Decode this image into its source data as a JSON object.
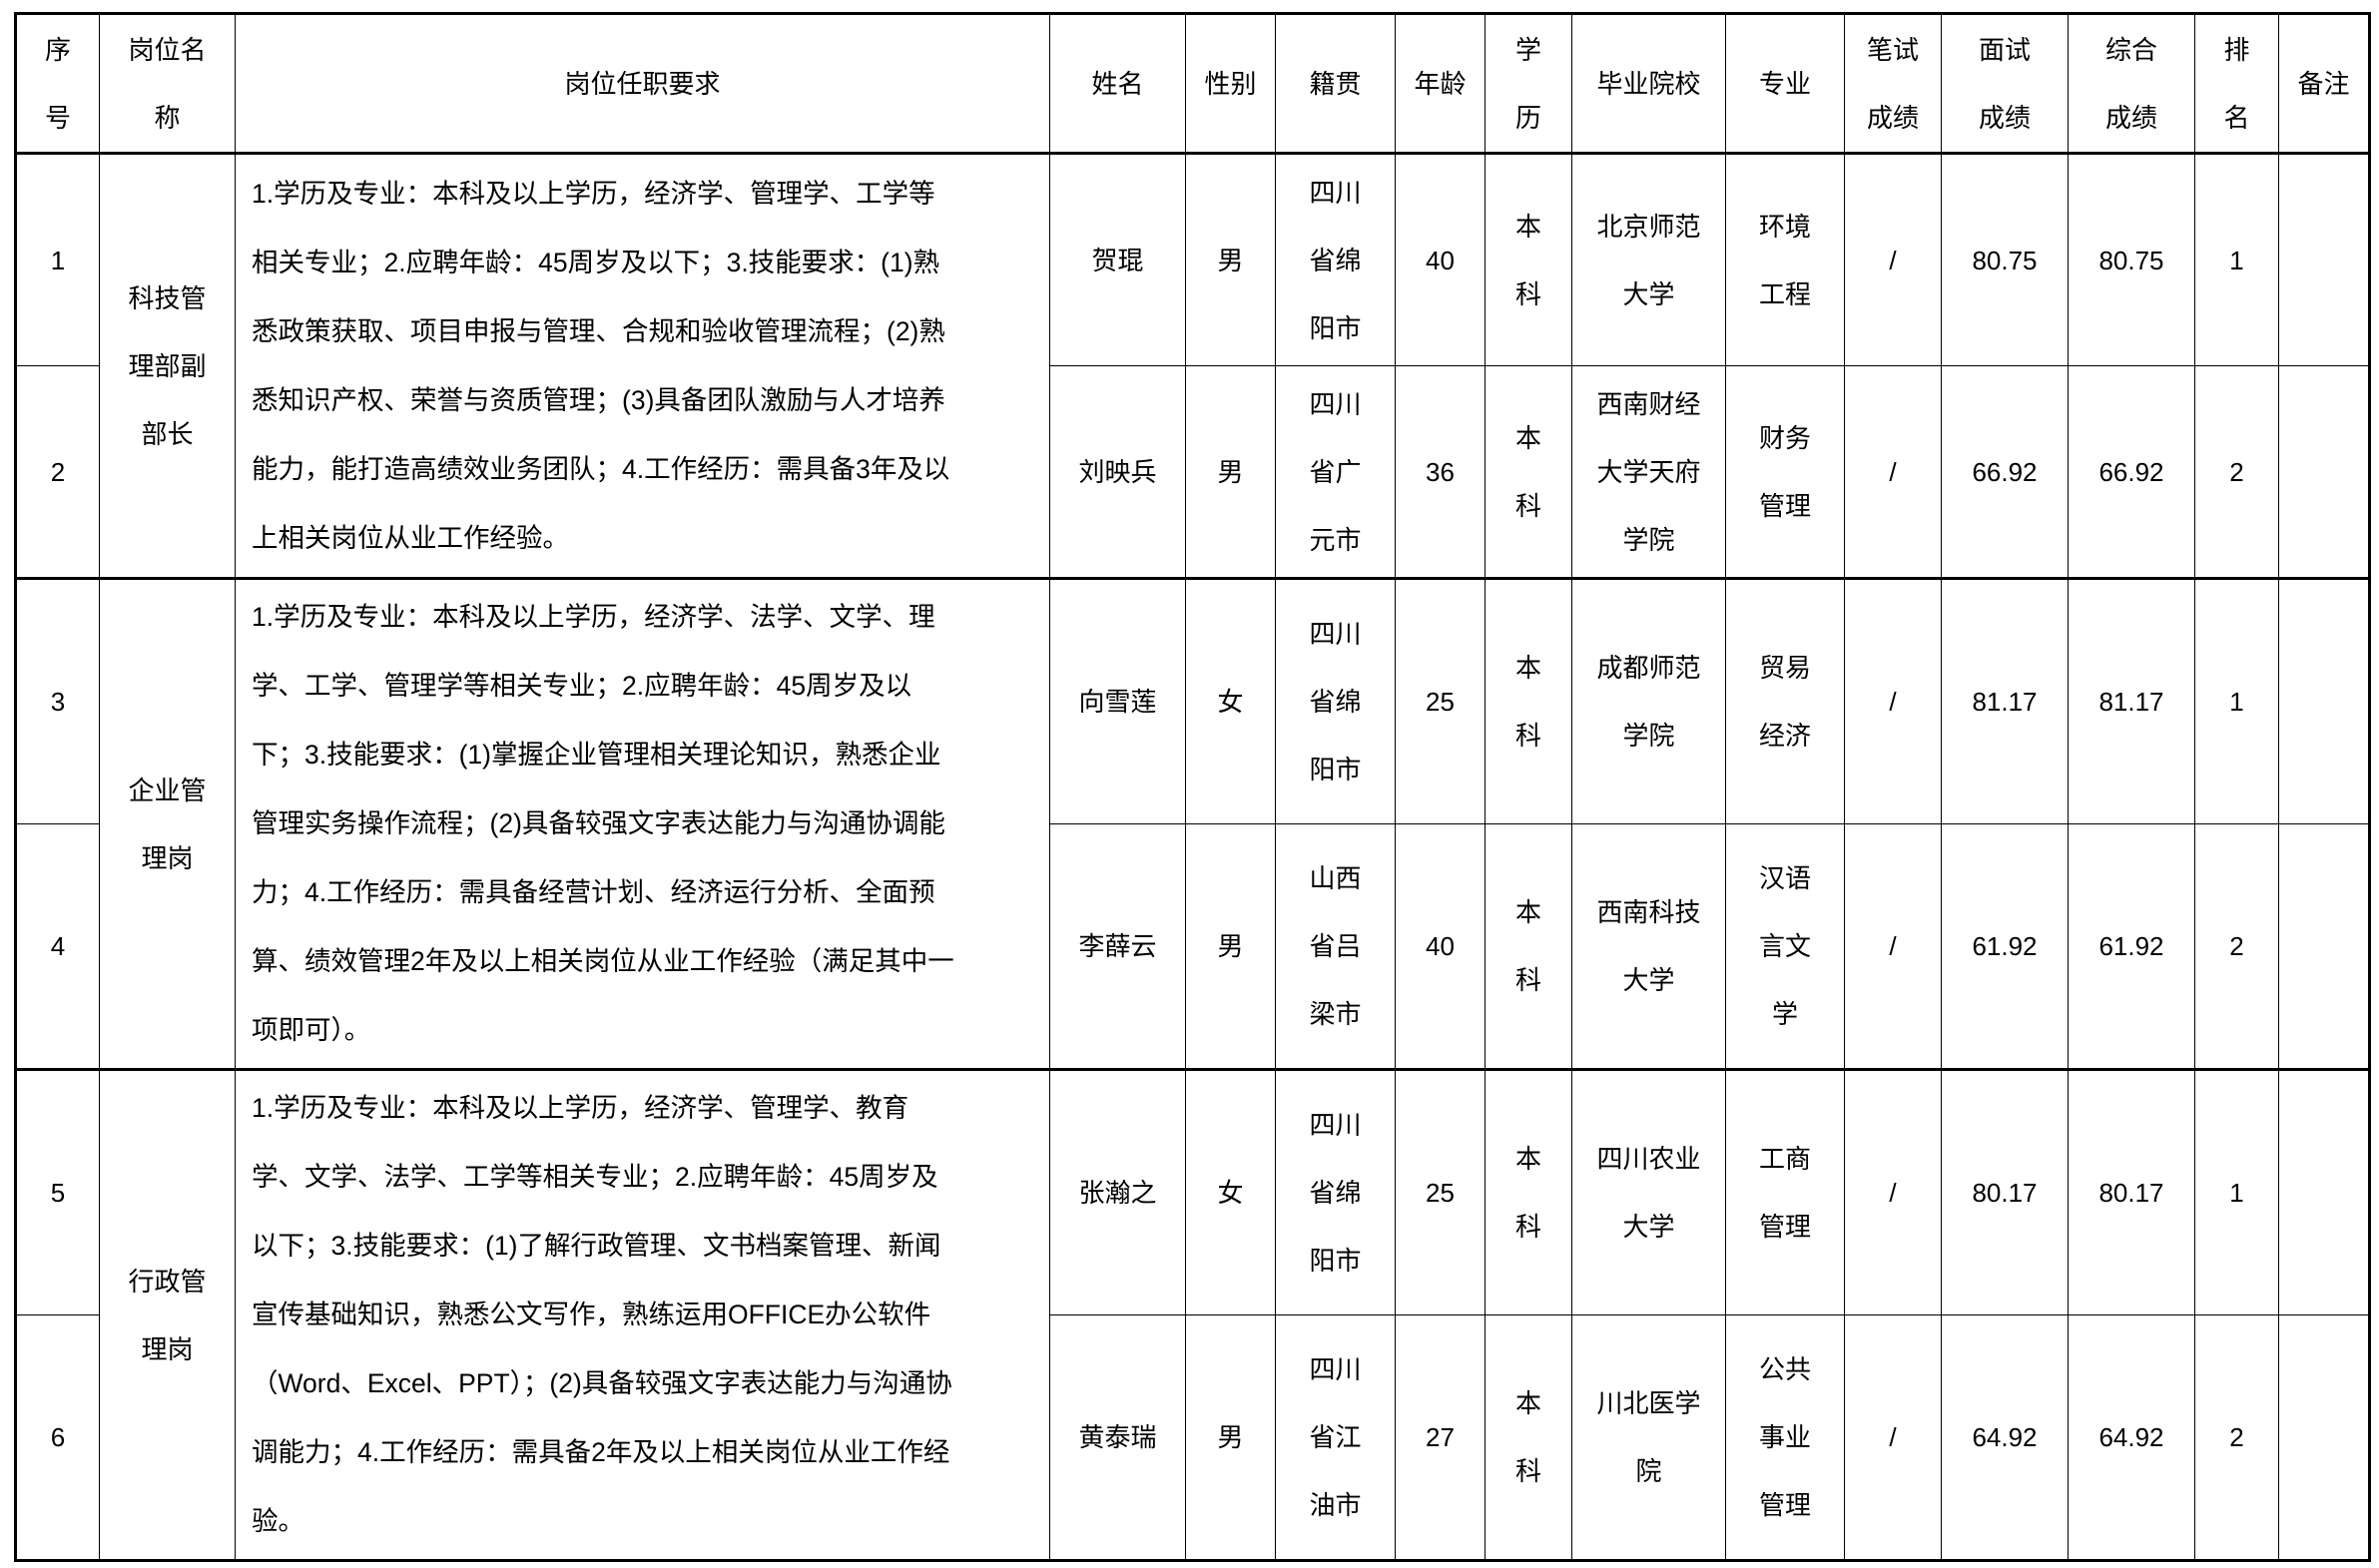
{
  "headers": [
    "序\n号",
    "岗位名\n称",
    "岗位任职要求",
    "姓名",
    "性别",
    "籍贯",
    "年龄",
    "学\n历",
    "毕业院校",
    "专业",
    "笔试\n成绩",
    "面试\n成绩",
    "综合\n成绩",
    "排\n名",
    "备注"
  ],
  "groups": [
    {
      "position": "科技管\n理部副\n部长",
      "requirements": "1.学历及专业：本科及以上学历，经济学、管理学、工学等\n相关专业；2.应聘年龄：45周岁及以下；3.技能要求：(1)熟\n悉政策获取、项目申报与管理、合规和验收管理流程；(2)熟\n悉知识产权、荣誉与资质管理；(3)具备团队激励与人才培养\n能力，能打造高绩效业务团队；4.工作经历：需具备3年及以\n上相关岗位从业工作经验。",
      "rows": [
        {
          "no": "1",
          "name": "贺琨",
          "gender": "男",
          "origin": "四川\n省绵\n阳市",
          "age": "40",
          "edu": "本\n科",
          "school": "北京师范\n大学",
          "major": "环境\n工程",
          "written": "/",
          "interview": "80.75",
          "total": "80.75",
          "rank": "1",
          "note": ""
        },
        {
          "no": "2",
          "name": "刘映兵",
          "gender": "男",
          "origin": "四川\n省广\n元市",
          "age": "36",
          "edu": "本\n科",
          "school": "西南财经\n大学天府\n学院",
          "major": "财务\n管理",
          "written": "/",
          "interview": "66.92",
          "total": "66.92",
          "rank": "2",
          "note": ""
        }
      ]
    },
    {
      "position": "企业管\n理岗",
      "requirements": "1.学历及专业：本科及以上学历，经济学、法学、文学、理\n学、工学、管理学等相关专业；2.应聘年龄：45周岁及以\n下；3.技能要求：(1)掌握企业管理相关理论知识，熟悉企业\n管理实务操作流程；(2)具备较强文字表达能力与沟通协调能\n力；4.工作经历：需具备经营计划、经济运行分析、全面预\n算、绩效管理2年及以上相关岗位从业工作经验（满足其中一\n项即可）。",
      "rows": [
        {
          "no": "3",
          "name": "向雪莲",
          "gender": "女",
          "origin": "四川\n省绵\n阳市",
          "age": "25",
          "edu": "本\n科",
          "school": "成都师范\n学院",
          "major": "贸易\n经济",
          "written": "/",
          "interview": "81.17",
          "total": "81.17",
          "rank": "1",
          "note": ""
        },
        {
          "no": "4",
          "name": "李薛云",
          "gender": "男",
          "origin": "山西\n省吕\n梁市",
          "age": "40",
          "edu": "本\n科",
          "school": "西南科技\n大学",
          "major": "汉语\n言文\n学",
          "written": "/",
          "interview": "61.92",
          "total": "61.92",
          "rank": "2",
          "note": ""
        }
      ]
    },
    {
      "position": "行政管\n理岗",
      "requirements": "1.学历及专业：本科及以上学历，经济学、管理学、教育\n学、文学、法学、工学等相关专业；2.应聘年龄：45周岁及\n以下；3.技能要求：(1)了解行政管理、文书档案管理、新闻\n宣传基础知识，熟悉公文写作，熟练运用OFFICE办公软件\n（Word、Excel、PPT）；(2)具备较强文字表达能力与沟通协\n调能力；4.工作经历：需具备2年及以上相关岗位从业工作经\n验。",
      "rows": [
        {
          "no": "5",
          "name": "张瀚之",
          "gender": "女",
          "origin": "四川\n省绵\n阳市",
          "age": "25",
          "edu": "本\n科",
          "school": "四川农业\n大学",
          "major": "工商\n管理",
          "written": "/",
          "interview": "80.17",
          "total": "80.17",
          "rank": "1",
          "note": ""
        },
        {
          "no": "6",
          "name": "黄泰瑞",
          "gender": "男",
          "origin": "四川\n省江\n油市",
          "age": "27",
          "edu": "本\n科",
          "school": "川北医学\n院",
          "major": "公共\n事业\n管理",
          "written": "/",
          "interview": "64.92",
          "total": "64.92",
          "rank": "2",
          "note": ""
        }
      ]
    }
  ]
}
